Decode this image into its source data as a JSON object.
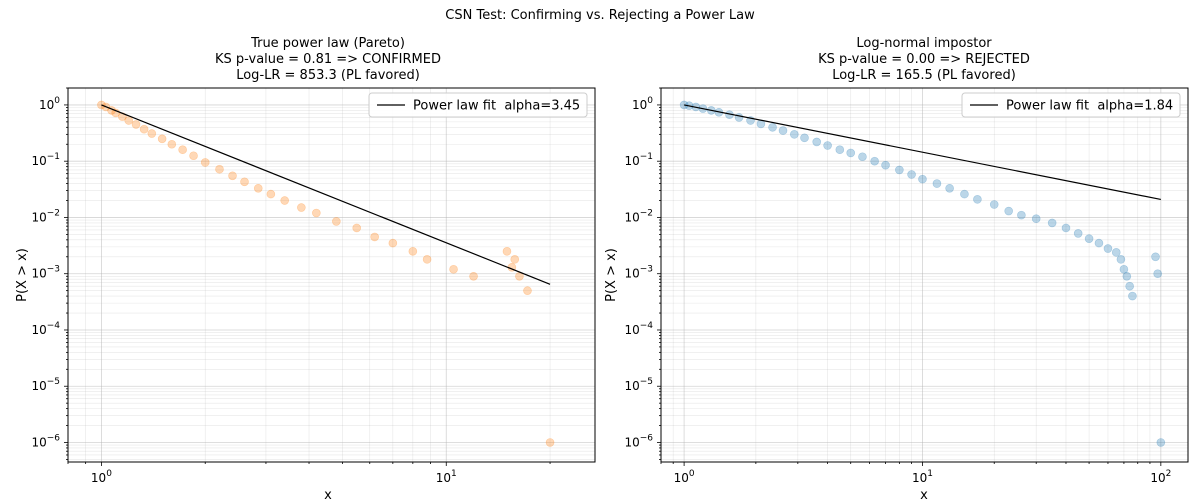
{
  "figure_title": "CSN Test: Confirming vs. Rejecting a Power Law",
  "chart_data": [
    {
      "type": "scatter",
      "title_lines": [
        "True power law (Pareto)",
        "KS p-value = 0.81  =>  CONFIRMED",
        "Log-LR = 853.3  (PL favored)"
      ],
      "xlabel": "x",
      "ylabel": "P(X > x)",
      "xscale": "log",
      "yscale": "log",
      "xlim": [
        0.8,
        27
      ],
      "ylim": [
        4.5e-07,
        2.0
      ],
      "grid": true,
      "legend_position": "top-right",
      "x_ticks": [
        {
          "value": 1,
          "label": "10^0"
        },
        {
          "value": 10,
          "label": "10^1"
        }
      ],
      "y_ticks": [
        {
          "value": 1,
          "label": "10^0"
        },
        {
          "value": 0.1,
          "label": "10^-1"
        },
        {
          "value": 0.01,
          "label": "10^-2"
        },
        {
          "value": 0.001,
          "label": "10^-3"
        },
        {
          "value": 0.0001,
          "label": "10^-4"
        },
        {
          "value": 1e-05,
          "label": "10^-5"
        },
        {
          "value": 1e-06,
          "label": "10^-6"
        }
      ],
      "scatter": {
        "color": "#ff7f0e",
        "alpha": 0.3,
        "points": [
          [
            1.0,
            1.0
          ],
          [
            1.03,
            0.92
          ],
          [
            1.07,
            0.8
          ],
          [
            1.1,
            0.72
          ],
          [
            1.15,
            0.62
          ],
          [
            1.2,
            0.53
          ],
          [
            1.26,
            0.45
          ],
          [
            1.33,
            0.37
          ],
          [
            1.4,
            0.31
          ],
          [
            1.5,
            0.25
          ],
          [
            1.6,
            0.2
          ],
          [
            1.72,
            0.16
          ],
          [
            1.85,
            0.125
          ],
          [
            2.0,
            0.095
          ],
          [
            2.2,
            0.072
          ],
          [
            2.4,
            0.055
          ],
          [
            2.6,
            0.043
          ],
          [
            2.85,
            0.033
          ],
          [
            3.1,
            0.026
          ],
          [
            3.4,
            0.02
          ],
          [
            3.8,
            0.015
          ],
          [
            4.2,
            0.012
          ],
          [
            4.8,
            0.0085
          ],
          [
            5.5,
            0.0065
          ],
          [
            6.2,
            0.0045
          ],
          [
            7.0,
            0.0035
          ],
          [
            8.0,
            0.0025
          ],
          [
            8.8,
            0.0018
          ],
          [
            10.5,
            0.0012
          ],
          [
            12.0,
            0.0009
          ],
          [
            15.0,
            0.0025
          ],
          [
            15.8,
            0.0018
          ],
          [
            15.5,
            0.0013
          ],
          [
            16.3,
            0.0009
          ],
          [
            17.2,
            0.0005
          ],
          [
            20.0,
            1e-06
          ]
        ]
      },
      "fit_line": {
        "label": "Power law fit  alpha=3.45",
        "color": "#000000",
        "alpha": 3.45,
        "x_range": [
          1.0,
          20.0
        ]
      }
    },
    {
      "type": "scatter",
      "title_lines": [
        "Log-normal impostor",
        "KS p-value = 0.00  =>  REJECTED",
        "Log-LR = 165.5  (PL favored)"
      ],
      "xlabel": "x",
      "ylabel": "P(X > x)",
      "xscale": "log",
      "yscale": "log",
      "xlim": [
        0.8,
        130
      ],
      "ylim": [
        4.5e-07,
        2.0
      ],
      "grid": true,
      "legend_position": "top-right",
      "x_ticks": [
        {
          "value": 1,
          "label": "10^0"
        },
        {
          "value": 10,
          "label": "10^1"
        },
        {
          "value": 100,
          "label": "10^2"
        }
      ],
      "y_ticks": [
        {
          "value": 1,
          "label": "10^0"
        },
        {
          "value": 0.1,
          "label": "10^-1"
        },
        {
          "value": 0.01,
          "label": "10^-2"
        },
        {
          "value": 0.001,
          "label": "10^-3"
        },
        {
          "value": 0.0001,
          "label": "10^-4"
        },
        {
          "value": 1e-05,
          "label": "10^-5"
        },
        {
          "value": 1e-06,
          "label": "10^-6"
        }
      ],
      "scatter": {
        "color": "#1f77b4",
        "alpha": 0.3,
        "points": [
          [
            1.0,
            1.0
          ],
          [
            1.05,
            0.97
          ],
          [
            1.12,
            0.92
          ],
          [
            1.2,
            0.86
          ],
          [
            1.3,
            0.8
          ],
          [
            1.4,
            0.74
          ],
          [
            1.55,
            0.67
          ],
          [
            1.7,
            0.6
          ],
          [
            1.9,
            0.53
          ],
          [
            2.1,
            0.46
          ],
          [
            2.35,
            0.4
          ],
          [
            2.6,
            0.35
          ],
          [
            2.9,
            0.3
          ],
          [
            3.2,
            0.26
          ],
          [
            3.6,
            0.22
          ],
          [
            4.0,
            0.19
          ],
          [
            4.5,
            0.16
          ],
          [
            5.0,
            0.14
          ],
          [
            5.6,
            0.12
          ],
          [
            6.3,
            0.1
          ],
          [
            7.0,
            0.085
          ],
          [
            8.0,
            0.07
          ],
          [
            9.0,
            0.058
          ],
          [
            10.0,
            0.048
          ],
          [
            11.5,
            0.04
          ],
          [
            13.0,
            0.033
          ],
          [
            15.0,
            0.026
          ],
          [
            17.0,
            0.021
          ],
          [
            20.0,
            0.017
          ],
          [
            23.0,
            0.013
          ],
          [
            26.0,
            0.011
          ],
          [
            30.0,
            0.0095
          ],
          [
            35.0,
            0.008
          ],
          [
            40.0,
            0.0065
          ],
          [
            45.0,
            0.0052
          ],
          [
            50.0,
            0.0042
          ],
          [
            55.0,
            0.0035
          ],
          [
            60.0,
            0.0028
          ],
          [
            65.0,
            0.0024
          ],
          [
            68.0,
            0.0018
          ],
          [
            70.0,
            0.0012
          ],
          [
            72.0,
            0.0009
          ],
          [
            74.0,
            0.0006
          ],
          [
            76.0,
            0.0004
          ],
          [
            95.0,
            0.002
          ],
          [
            97.0,
            0.001
          ],
          [
            100.0,
            1e-06
          ]
        ]
      },
      "fit_line": {
        "label": "Power law fit  alpha=1.84",
        "color": "#000000",
        "alpha": 1.84,
        "x_range": [
          1.0,
          100.0
        ]
      }
    }
  ]
}
